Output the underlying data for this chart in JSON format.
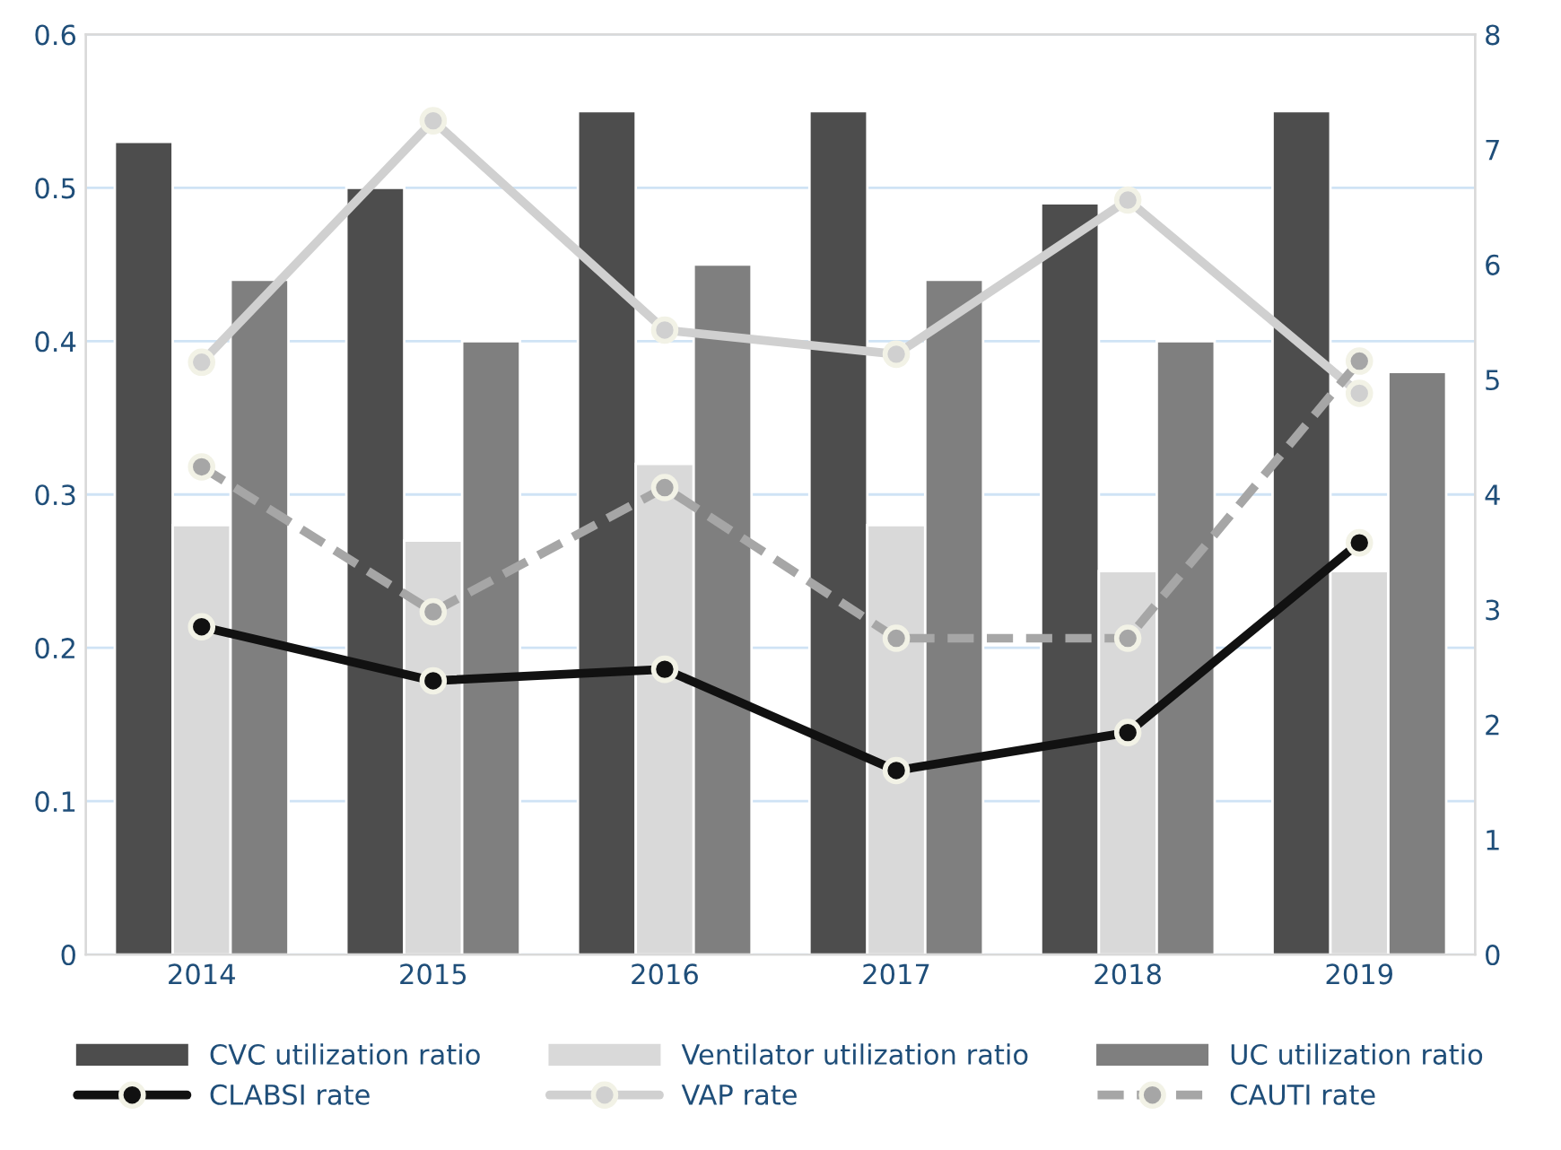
{
  "chart_data": {
    "type": "bar",
    "categories": [
      "2014",
      "2015",
      "2016",
      "2017",
      "2018",
      "2019"
    ],
    "series": [
      {
        "name": "CVC utilization ratio",
        "color": "#4d4d4d",
        "values": [
          0.53,
          0.5,
          0.55,
          0.55,
          0.49,
          0.55
        ]
      },
      {
        "name": "Ventilator utilization ratio",
        "color": "#d9d9d9",
        "values": [
          0.28,
          0.27,
          0.32,
          0.28,
          0.25,
          0.25
        ]
      },
      {
        "name": "UC utilization ratio",
        "color": "#7f7f7f",
        "values": [
          0.44,
          0.4,
          0.45,
          0.44,
          0.4,
          0.38
        ]
      },
      {
        "name": "CLABSI rate",
        "type": "line",
        "axis": "y2",
        "color": "#111111",
        "line_style": "solid",
        "marker": "circle",
        "values": [
          2.85,
          2.38,
          2.48,
          1.6,
          1.93,
          3.58
        ]
      },
      {
        "name": "VAP rate",
        "type": "line",
        "axis": "y2",
        "color": "#d0d0d0",
        "line_style": "solid",
        "marker": "circle",
        "values": [
          5.15,
          7.25,
          5.43,
          5.22,
          6.56,
          4.88
        ]
      },
      {
        "name": "CAUTI rate",
        "type": "line",
        "axis": "y2",
        "color": "#a6a6a6",
        "line_style": "dashed",
        "marker": "circle",
        "values": [
          4.24,
          2.98,
          4.06,
          2.75,
          2.75,
          5.16
        ]
      }
    ],
    "ylim": [
      0,
      0.6
    ],
    "yticks": [
      0,
      0.1,
      0.2,
      0.3,
      0.4,
      0.5,
      0.6
    ],
    "y2lim": [
      0,
      8
    ],
    "y2ticks": [
      0,
      1,
      2,
      3,
      4,
      5,
      6,
      7,
      8
    ],
    "grid": "y",
    "legend": "bottom"
  }
}
